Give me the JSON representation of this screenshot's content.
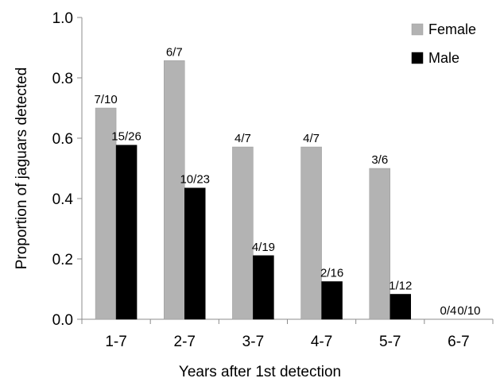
{
  "chart_data": {
    "type": "bar",
    "title": "",
    "xlabel": "Years after 1st detection",
    "ylabel": "Proportion of jaguars detected",
    "ylim": [
      0,
      1.0
    ],
    "yticks": [
      0.0,
      0.2,
      0.4,
      0.6,
      0.8,
      1.0
    ],
    "ytick_labels": [
      "0.0",
      "0.2",
      "0.4",
      "0.6",
      "0.8",
      "1.0"
    ],
    "grid": false,
    "legend_position": "top-right",
    "categories": [
      "1-7",
      "2-7",
      "3-7",
      "4-7",
      "5-7",
      "6-7"
    ],
    "series": [
      {
        "name": "Female",
        "color": "#b3b3b3",
        "values": [
          0.7,
          0.857,
          0.571,
          0.571,
          0.5,
          0.0
        ],
        "labels": [
          "7/10",
          "6/7",
          "4/7",
          "4/7",
          "3/6",
          "0/4"
        ]
      },
      {
        "name": "Male",
        "color": "#000000",
        "values": [
          0.577,
          0.435,
          0.211,
          0.125,
          0.083,
          0.0
        ],
        "labels": [
          "15/26",
          "10/23",
          "4/19",
          "2/16",
          "1/12",
          "0/10"
        ]
      }
    ]
  }
}
